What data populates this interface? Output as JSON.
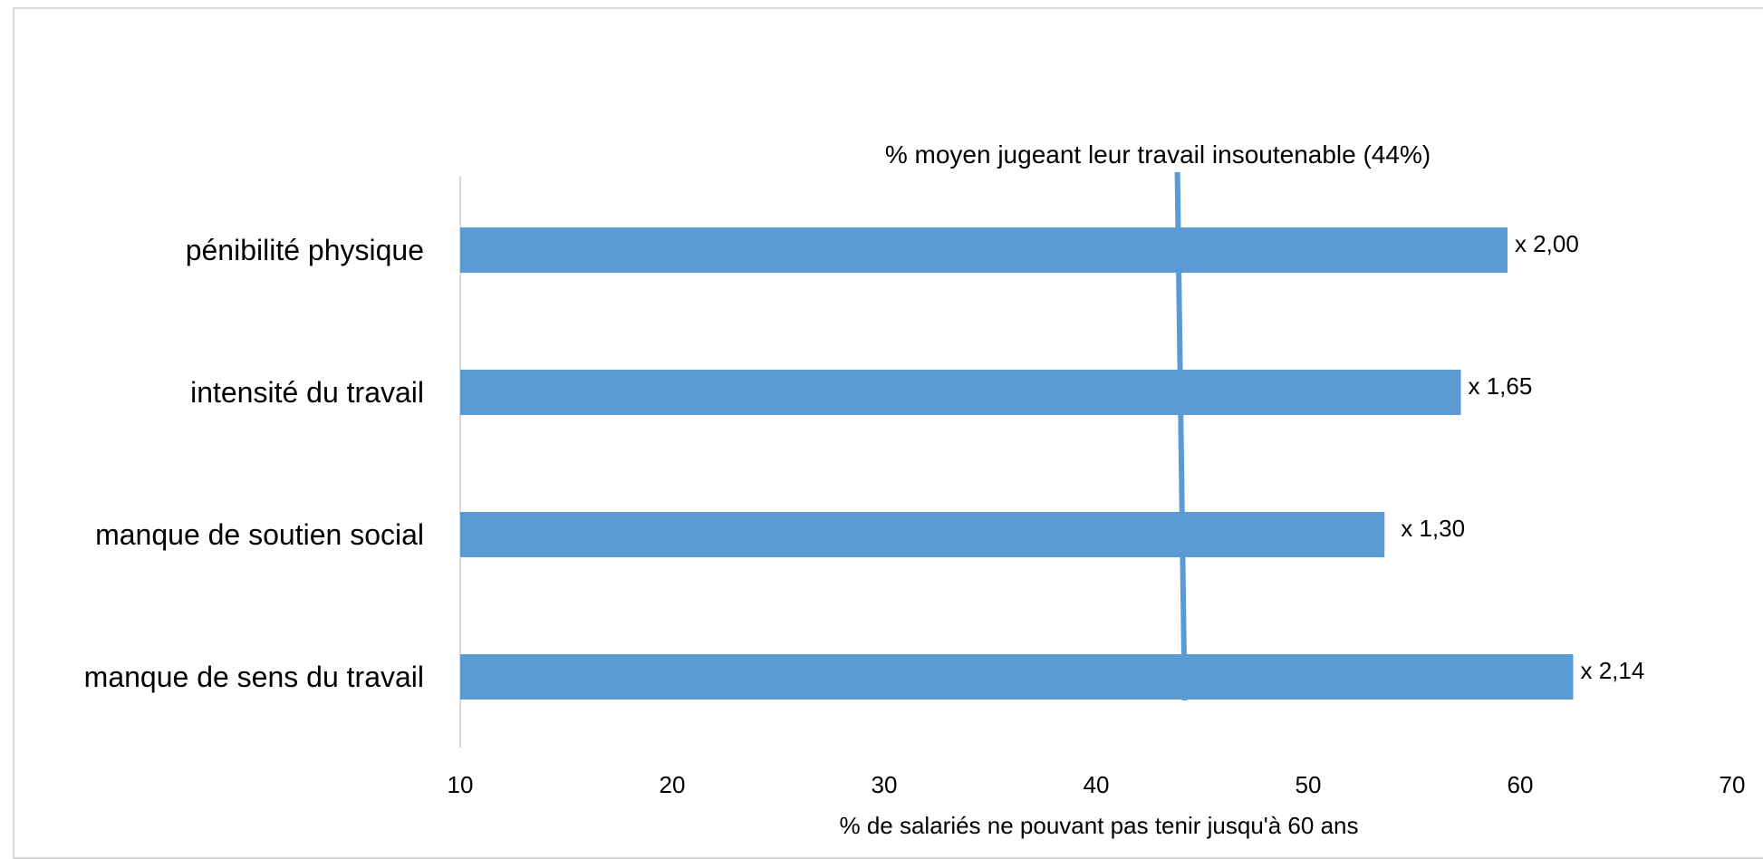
{
  "chart_data": {
    "type": "bar",
    "orientation": "horizontal",
    "categories": [
      "pénibilité physique",
      "intensité du travail",
      "manque de soutien social",
      "manque de sens du travail"
    ],
    "values": [
      59.4,
      57.2,
      53.6,
      62.5
    ],
    "data_labels": [
      "x 2,00",
      "x 1,65",
      "x 1,30",
      "x 2,14"
    ],
    "xlim": [
      10,
      70
    ],
    "xticks": [
      "10",
      "20",
      "30",
      "40",
      "50",
      "60",
      "70"
    ],
    "xlabel": "% de salariés ne pouvant pas tenir jusqu'à 60 ans",
    "ylabel": "",
    "title": "",
    "grid": false,
    "reference_line": {
      "value": 44,
      "label": "% moyen jugeant leur travail insoutenable (44%)"
    },
    "colors": {
      "bar": "#5b9bd5",
      "reference": "#5b9bd5",
      "axis": "#d9d9d9"
    }
  }
}
